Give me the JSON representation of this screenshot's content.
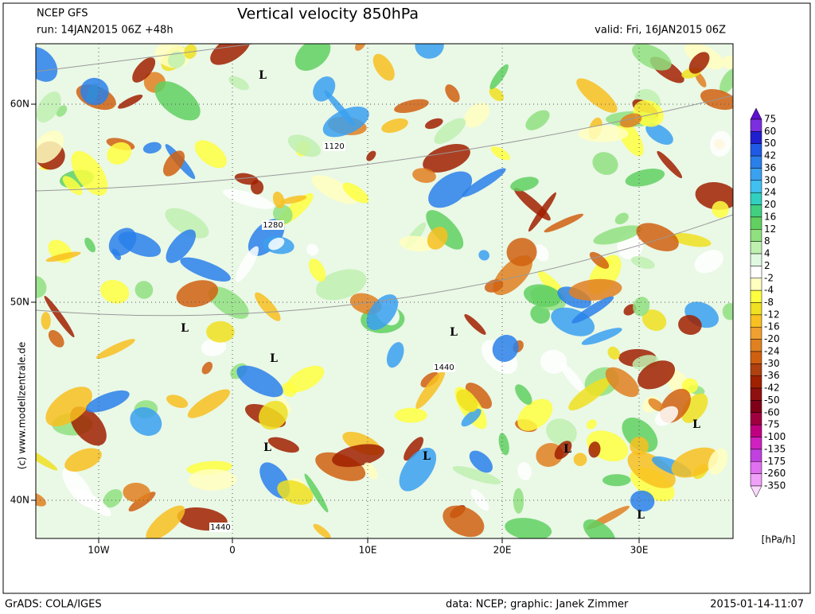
{
  "header": {
    "model": "NCEP GFS",
    "run": "run: 14JAN2015 06Z +48h",
    "title": "Vertical velocity 850hPa",
    "valid": "valid: Fri, 16JAN2015 06Z"
  },
  "map": {
    "lat_labels": [
      "60N",
      "50N",
      "40N"
    ],
    "lon_labels": [
      "10W",
      "0",
      "10E",
      "20E",
      "30E"
    ],
    "contour_labels": [
      "1120",
      "1280",
      "1440",
      "1440"
    ],
    "low_markers": [
      "L",
      "L",
      "L",
      "L",
      "L",
      "L",
      "L",
      "L",
      "L"
    ],
    "watermark": "(c) www.modellzentrale.de"
  },
  "colorbar": {
    "labels": [
      "75",
      "60",
      "50",
      "42",
      "36",
      "30",
      "24",
      "20",
      "16",
      "12",
      "8",
      "4",
      "2",
      "-2",
      "-4",
      "-8",
      "-12",
      "-16",
      "-20",
      "-24",
      "-30",
      "-36",
      "-42",
      "-50",
      "-60",
      "-75",
      "-100",
      "-135",
      "-175",
      "-260",
      "-350"
    ],
    "colors": [
      "#7b2fe0",
      "#2020d0",
      "#1e5ae6",
      "#2a80ea",
      "#3aa0f0",
      "#40c0f0",
      "#30d0c0",
      "#40d080",
      "#60d060",
      "#90e080",
      "#c0f0b0",
      "#e0f8e0",
      "#ffffff",
      "#ffffc0",
      "#ffff40",
      "#f0e020",
      "#f8c020",
      "#f0a030",
      "#e08020",
      "#d06010",
      "#b04010",
      "#a02000",
      "#901010",
      "#800018",
      "#a00040",
      "#c00080",
      "#d020c0",
      "#c040e0",
      "#e070f0",
      "#f0a0f8"
    ],
    "unit": "[hPa/h]"
  },
  "footer": {
    "left": "GrADS: COLA/IGES",
    "center": "data: NCEP; graphic: Janek Zimmer",
    "right": "2015-01-14-11:07"
  }
}
